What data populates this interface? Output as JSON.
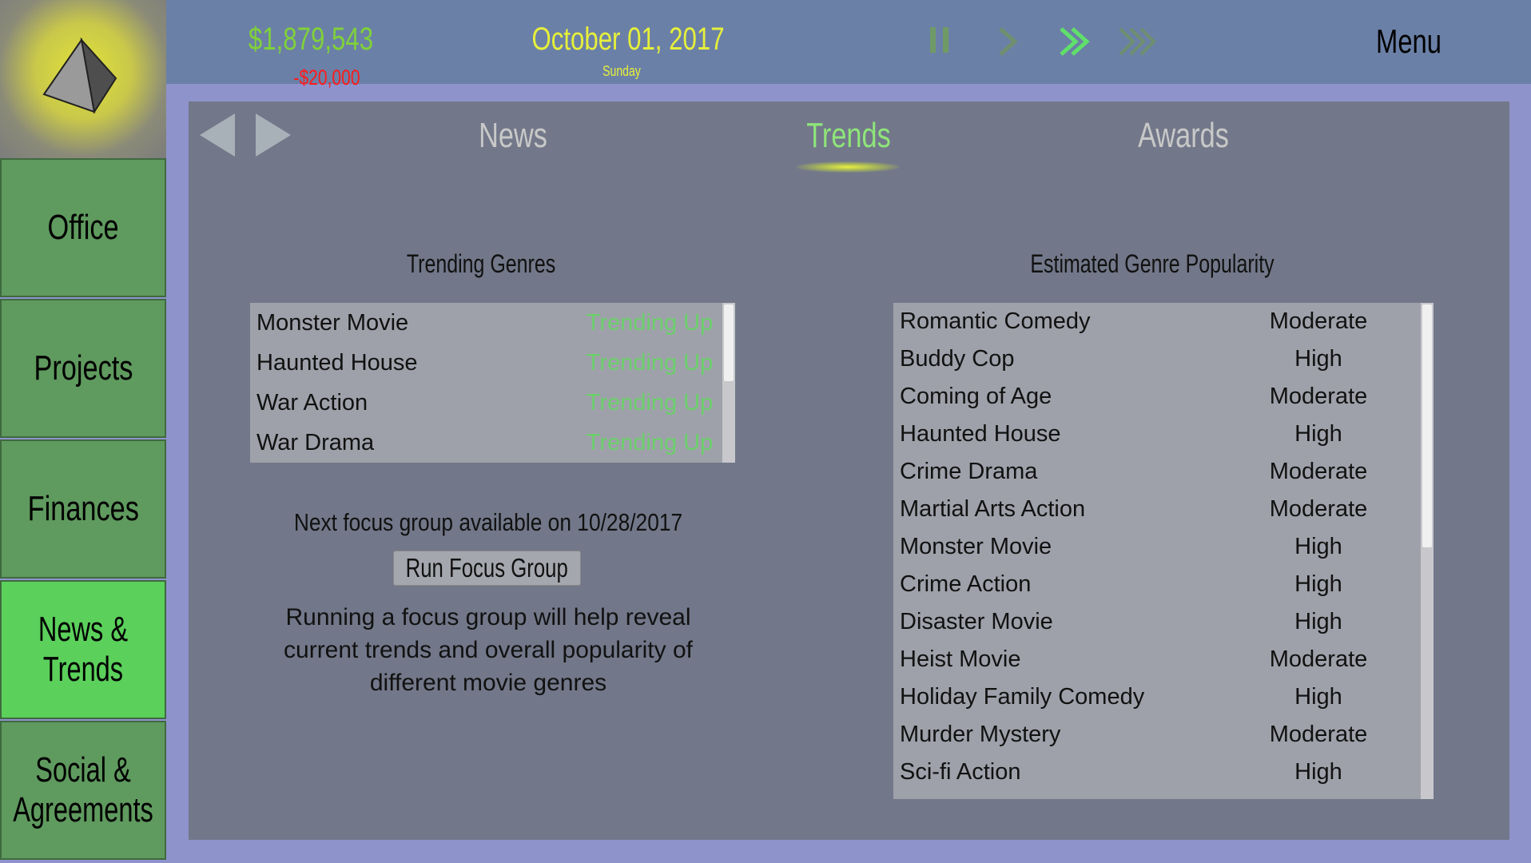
{
  "header": {
    "money": "$1,879,543",
    "money_change": "-$20,000",
    "date": "October 01, 2017",
    "weekday": "Sunday",
    "menu_label": "Menu",
    "speed_controls": [
      "pause-icon",
      "play-icon",
      "fast-forward-icon",
      "fastest-forward-icon"
    ],
    "active_speed": "fast-forward"
  },
  "sidebar": {
    "items": [
      {
        "label": "Office"
      },
      {
        "label": "Projects"
      },
      {
        "label": "Finances"
      },
      {
        "label": "News & Trends",
        "active": true
      },
      {
        "label": "Social & Agreements"
      }
    ]
  },
  "tabs": [
    {
      "label": "News"
    },
    {
      "label": "Trends",
      "active": true
    },
    {
      "label": "Awards"
    }
  ],
  "trending": {
    "title": "Trending Genres",
    "rows": [
      {
        "genre": "Monster Movie",
        "trend": "Trending Up"
      },
      {
        "genre": "Haunted House",
        "trend": "Trending Up"
      },
      {
        "genre": "War Action",
        "trend": "Trending Up"
      },
      {
        "genre": "War Drama",
        "trend": "Trending Up"
      }
    ]
  },
  "focus": {
    "next_text": "Next focus group available on 10/28/2017",
    "button_label": "Run Focus Group",
    "description": "Running a focus group will help reveal current trends and overall popularity of different movie genres"
  },
  "popularity": {
    "title": "Estimated Genre Popularity",
    "rows": [
      {
        "genre": "Romantic Comedy",
        "level": "Moderate"
      },
      {
        "genre": "Buddy Cop",
        "level": "High"
      },
      {
        "genre": "Coming of Age",
        "level": "Moderate"
      },
      {
        "genre": "Haunted House",
        "level": "High"
      },
      {
        "genre": "Crime Drama",
        "level": "Moderate"
      },
      {
        "genre": "Martial Arts Action",
        "level": "Moderate"
      },
      {
        "genre": "Monster Movie",
        "level": "High"
      },
      {
        "genre": "Crime Action",
        "level": "High"
      },
      {
        "genre": "Disaster Movie",
        "level": "High"
      },
      {
        "genre": "Heist Movie",
        "level": "Moderate"
      },
      {
        "genre": "Holiday Family Comedy",
        "level": "High"
      },
      {
        "genre": "Murder Mystery",
        "level": "Moderate"
      },
      {
        "genre": "Sci-fi Action",
        "level": "High"
      }
    ]
  },
  "colors": {
    "money": "#7fd13a",
    "loss": "#ff1a1a",
    "date": "#e6f03a",
    "trend_up": "#6bd06b",
    "active_tab": "#8ee57a",
    "active_sidebar": "#5bd05b"
  }
}
